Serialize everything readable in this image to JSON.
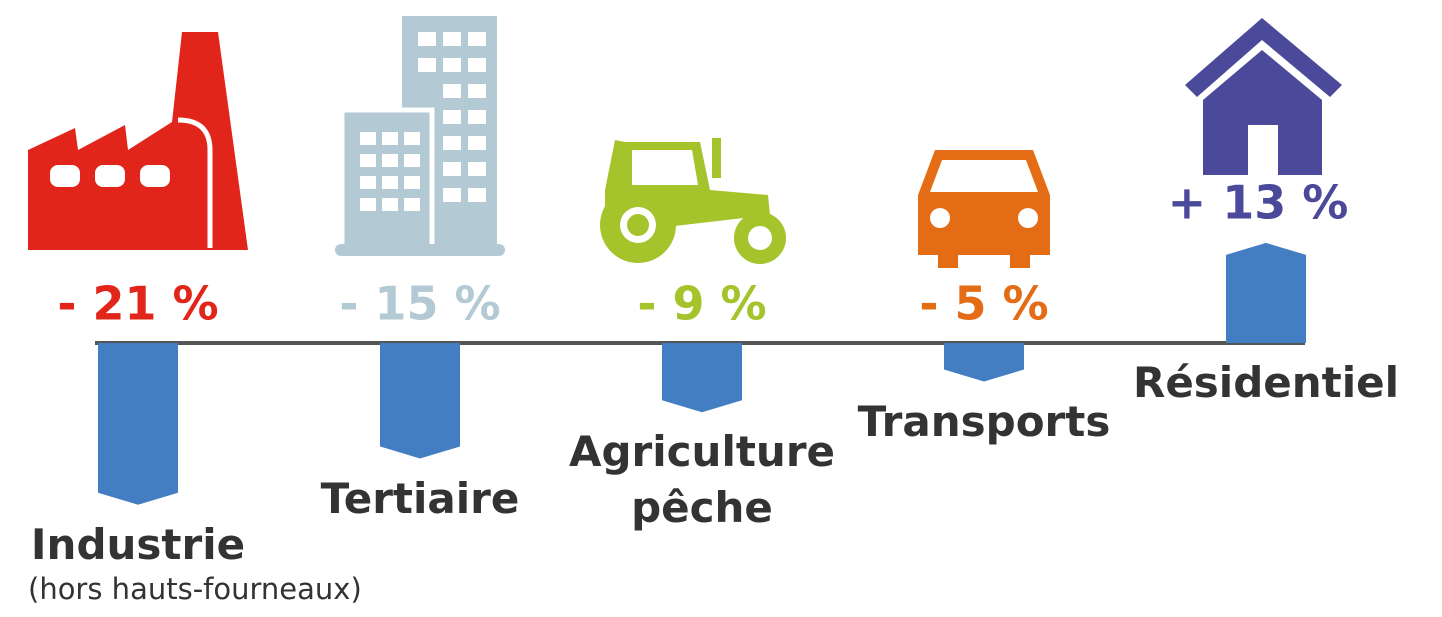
{
  "chart_data": {
    "type": "bar",
    "categories": [
      "Industrie",
      "Tertiaire",
      "Agriculture\npêche",
      "Transports",
      "Résidentiel"
    ],
    "values": [
      -21,
      -15,
      -9,
      -5,
      13
    ],
    "value_labels": [
      "- 21 %",
      "- 15 %",
      "- 9 %",
      "- 5 %",
      "+ 13 %"
    ],
    "color": "#427ec1",
    "label_colors": [
      "#e1251b",
      "#b3c9d3",
      "#a5c32b",
      "#e36c14",
      "#4b4a9a"
    ],
    "annotation": "(hors hauts-fourneaux)"
  }
}
